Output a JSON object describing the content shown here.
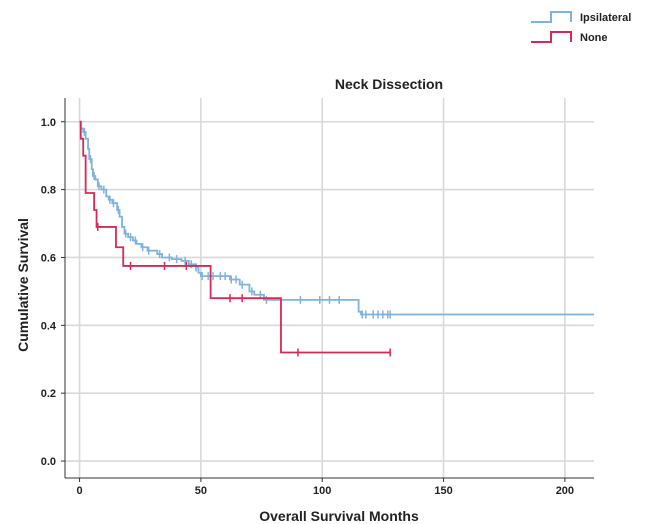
{
  "chart_data": {
    "type": "line",
    "title": "Neck Dissection",
    "xlabel": "Overall Survival Months",
    "ylabel": "Cumulative Survival",
    "xlim": [
      -6,
      212
    ],
    "ylim": [
      -0.05,
      1.07
    ],
    "x_ticks": [
      0,
      50,
      100,
      150,
      200
    ],
    "y_ticks": [
      0.0,
      0.2,
      0.4,
      0.6,
      0.8,
      1.0
    ],
    "y_tick_labels": [
      "0.0",
      "0.2",
      "0.4",
      "0.6",
      "0.8",
      "1.0"
    ],
    "grid": true,
    "legend_position": "top-right",
    "series": [
      {
        "name": "Ipsilateral",
        "color": "#7fb3dc",
        "steps": [
          [
            0,
            1.0
          ],
          [
            0.5,
            0.98
          ],
          [
            1.5,
            0.97
          ],
          [
            2.5,
            0.95
          ],
          [
            3.5,
            0.92
          ],
          [
            4,
            0.89
          ],
          [
            5,
            0.86
          ],
          [
            5.5,
            0.84
          ],
          [
            6.5,
            0.83
          ],
          [
            7.5,
            0.81
          ],
          [
            9,
            0.8
          ],
          [
            11,
            0.78
          ],
          [
            12,
            0.77
          ],
          [
            13.5,
            0.76
          ],
          [
            15.5,
            0.74
          ],
          [
            16.5,
            0.72
          ],
          [
            17.5,
            0.69
          ],
          [
            18.5,
            0.67
          ],
          [
            20,
            0.66
          ],
          [
            22,
            0.65
          ],
          [
            23.5,
            0.64
          ],
          [
            25.5,
            0.63
          ],
          [
            28,
            0.62
          ],
          [
            32,
            0.61
          ],
          [
            34,
            0.6
          ],
          [
            38,
            0.595
          ],
          [
            42,
            0.59
          ],
          [
            45,
            0.58
          ],
          [
            48,
            0.57
          ],
          [
            49,
            0.555
          ],
          [
            50,
            0.545
          ],
          [
            62,
            0.535
          ],
          [
            66,
            0.52
          ],
          [
            70,
            0.5
          ],
          [
            72,
            0.49
          ],
          [
            76,
            0.475
          ],
          [
            115,
            0.44
          ],
          [
            116,
            0.432
          ],
          [
            212,
            0.432
          ]
        ],
        "censor_x": [
          2,
          4.5,
          6,
          8,
          10,
          12.5,
          14,
          16,
          19,
          21,
          23,
          26,
          28.5,
          33,
          37,
          40,
          43.5,
          46,
          48,
          50.5,
          53,
          55,
          58,
          60,
          62.5,
          64.5,
          67,
          71,
          74.5,
          77,
          91,
          99,
          103,
          107,
          116.5,
          118,
          121,
          123,
          125,
          127,
          128
        ]
      },
      {
        "name": "None",
        "color": "#d42a55",
        "steps": [
          [
            0,
            1.0
          ],
          [
            0.5,
            0.95
          ],
          [
            1.5,
            0.9
          ],
          [
            2.5,
            0.79
          ],
          [
            6,
            0.74
          ],
          [
            7,
            0.69
          ],
          [
            9,
            0.69
          ],
          [
            15,
            0.63
          ],
          [
            18,
            0.575
          ],
          [
            54,
            0.48
          ],
          [
            83,
            0.32
          ],
          [
            128,
            0.32
          ]
        ],
        "censor_x": [
          7.5,
          21,
          35,
          44,
          62,
          67,
          90,
          128
        ]
      }
    ]
  }
}
